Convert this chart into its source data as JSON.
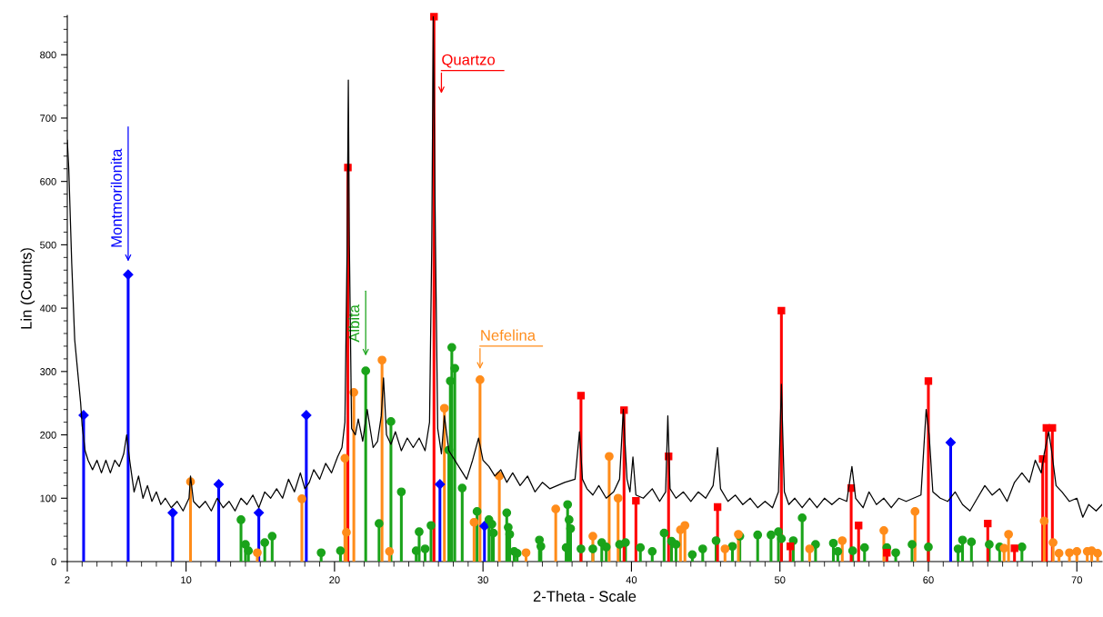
{
  "chart_data": {
    "type": "line",
    "xlabel": "2-Theta - Scale",
    "ylabel": "Lin (Counts)",
    "xlim": [
      2,
      71.7
    ],
    "ylim": [
      0,
      862
    ],
    "xticks": [
      2,
      10,
      20,
      30,
      40,
      50,
      60,
      70
    ],
    "yticks": [
      0,
      100,
      200,
      300,
      400,
      500,
      600,
      700,
      800
    ],
    "grid": false,
    "legend": false,
    "series": [
      {
        "color": "#000000",
        "marker": "none",
        "line_style": "solid",
        "x": [
          2.0,
          2.1,
          2.3,
          2.5,
          2.7,
          2.9,
          3.0,
          3.2,
          3.4,
          3.7,
          4.0,
          4.3,
          4.6,
          4.9,
          5.2,
          5.5,
          5.8,
          6.0,
          6.2,
          6.5,
          6.8,
          7.1,
          7.4,
          7.7,
          8.0,
          8.3,
          8.6,
          9.0,
          9.4,
          9.8,
          10.2,
          10.3,
          10.5,
          10.9,
          11.3,
          11.7,
          12.1,
          12.5,
          12.9,
          13.3,
          13.7,
          14.1,
          14.5,
          14.9,
          15.3,
          15.7,
          16.1,
          16.5,
          16.9,
          17.3,
          17.7,
          18.0,
          18.3,
          18.6,
          19.0,
          19.4,
          19.8,
          20.2,
          20.5,
          20.7,
          20.85,
          20.93,
          21.0,
          21.15,
          21.4,
          21.6,
          21.9,
          22.2,
          22.6,
          22.9,
          23.15,
          23.3,
          23.5,
          23.8,
          24.1,
          24.5,
          24.9,
          25.3,
          25.7,
          26.1,
          26.4,
          26.55,
          26.65,
          26.8,
          26.95,
          27.2,
          27.4,
          27.7,
          28.1,
          28.5,
          28.9,
          29.3,
          29.7,
          30.0,
          30.4,
          30.8,
          31.2,
          31.6,
          32.0,
          32.5,
          33.0,
          33.5,
          34.0,
          34.5,
          35.0,
          35.5,
          36.2,
          36.5,
          36.7,
          37.0,
          37.4,
          37.8,
          38.3,
          38.8,
          39.2,
          39.45,
          39.7,
          39.9,
          40.1,
          40.3,
          40.8,
          41.4,
          41.9,
          42.3,
          42.45,
          42.6,
          43.0,
          43.5,
          44.0,
          44.5,
          45.0,
          45.5,
          45.8,
          46.0,
          46.5,
          47.0,
          47.5,
          48.0,
          48.5,
          49.0,
          49.5,
          49.9,
          50.1,
          50.3,
          50.6,
          51.0,
          51.5,
          52.0,
          52.5,
          53.0,
          53.5,
          54.0,
          54.5,
          54.85,
          55.1,
          55.6,
          56.0,
          56.5,
          57.0,
          57.5,
          58.0,
          58.5,
          59.0,
          59.5,
          59.85,
          60.05,
          60.3,
          60.8,
          61.3,
          61.8,
          62.3,
          62.8,
          63.3,
          63.8,
          64.3,
          64.8,
          65.3,
          65.8,
          66.3,
          66.8,
          67.2,
          67.6,
          67.8,
          68.1,
          68.3,
          68.6,
          69.0,
          69.5,
          70.0,
          70.4,
          70.8,
          71.3,
          71.7
        ],
        "values": [
          665,
          620,
          470,
          350,
          300,
          250,
          215,
          175,
          160,
          145,
          160,
          140,
          160,
          140,
          160,
          150,
          170,
          200,
          160,
          110,
          135,
          100,
          120,
          95,
          110,
          90,
          100,
          85,
          95,
          80,
          100,
          135,
          95,
          85,
          95,
          80,
          100,
          85,
          95,
          80,
          100,
          90,
          105,
          85,
          110,
          100,
          115,
          100,
          130,
          110,
          140,
          115,
          125,
          145,
          130,
          155,
          140,
          165,
          180,
          220,
          500,
          760,
          500,
          210,
          200,
          225,
          190,
          240,
          180,
          190,
          230,
          290,
          200,
          185,
          205,
          175,
          195,
          180,
          195,
          175,
          220,
          500,
          860,
          500,
          210,
          170,
          230,
          175,
          160,
          145,
          130,
          160,
          195,
          160,
          150,
          135,
          145,
          125,
          140,
          120,
          135,
          110,
          125,
          115,
          120,
          125,
          130,
          205,
          130,
          115,
          105,
          120,
          100,
          110,
          130,
          240,
          130,
          110,
          165,
          105,
          100,
          115,
          95,
          110,
          230,
          115,
          100,
          110,
          95,
          110,
          100,
          120,
          180,
          115,
          95,
          105,
          90,
          100,
          85,
          95,
          85,
          110,
          280,
          110,
          90,
          100,
          85,
          100,
          85,
          100,
          90,
          100,
          95,
          150,
          100,
          85,
          110,
          90,
          100,
          85,
          100,
          95,
          100,
          105,
          240,
          200,
          110,
          100,
          95,
          110,
          90,
          80,
          100,
          120,
          105,
          115,
          95,
          125,
          140,
          125,
          160,
          140,
          170,
          205,
          175,
          120,
          110,
          95,
          100,
          70,
          90,
          80,
          90
        ]
      },
      {
        "type": "lollipop",
        "color": "#0000ff",
        "marker": "diamond",
        "x": [
          3.1,
          6.1,
          9.1,
          12.2,
          14.9,
          18.1,
          27.1,
          30.1,
          61.5
        ],
        "values": [
          231,
          453,
          77,
          122,
          77,
          231,
          122,
          56,
          188
        ]
      },
      {
        "type": "lollipop",
        "color": "#1aa31a",
        "marker": "circle",
        "x": [
          13.7,
          14.0,
          14.2,
          15.3,
          15.8,
          19.1,
          20.4,
          22.1,
          23.0,
          23.8,
          24.5,
          25.5,
          25.7,
          26.1,
          26.5,
          27.7,
          27.8,
          27.9,
          28.1,
          28.6,
          29.6,
          30.4,
          30.6,
          30.7,
          31.6,
          31.7,
          31.8,
          32.1,
          32.3,
          33.8,
          33.9,
          35.6,
          35.7,
          35.8,
          35.9,
          36.6,
          37.4,
          38.0,
          38.3,
          39.2,
          39.6,
          40.6,
          41.4,
          42.2,
          42.7,
          43.0,
          44.1,
          44.8,
          45.7,
          46.8,
          47.3,
          48.5,
          49.4,
          49.9,
          50.1,
          50.9,
          51.5,
          52.4,
          53.6,
          53.9,
          54.9,
          55.7,
          57.2,
          57.8,
          58.9,
          60.0,
          62.0,
          62.3,
          62.9,
          64.1,
          64.8,
          66.3
        ],
        "values": [
          66,
          27,
          17,
          30,
          40,
          14,
          17,
          301,
          60,
          221,
          110,
          17,
          47,
          20,
          57,
          176,
          285,
          338,
          305,
          116,
          79,
          66,
          59,
          45,
          77,
          54,
          43,
          16,
          13,
          34,
          24,
          22,
          90,
          66,
          52,
          20,
          20,
          30,
          23,
          27,
          30,
          22,
          16,
          45,
          32,
          27,
          11,
          20,
          33,
          24,
          40,
          42,
          42,
          47,
          36,
          33,
          69,
          27,
          29,
          16,
          17,
          22,
          22,
          14,
          27,
          23,
          20,
          34,
          31,
          27,
          23,
          23
        ]
      },
      {
        "type": "lollipop",
        "color": "#ff0000",
        "marker": "square",
        "x": [
          20.9,
          26.7,
          36.6,
          39.5,
          40.3,
          42.5,
          45.8,
          50.1,
          50.7,
          54.8,
          55.3,
          57.2,
          60.0,
          64.0,
          65.8,
          67.7,
          67.95,
          68.35
        ],
        "values": [
          622,
          860,
          262,
          239,
          96,
          166,
          86,
          396,
          24,
          116,
          57,
          14,
          285,
          60,
          21,
          162,
          211,
          211
        ]
      },
      {
        "type": "lollipop",
        "color": "#ff8c1a",
        "marker": "circle",
        "x": [
          10.3,
          14.8,
          17.8,
          20.7,
          20.8,
          21.3,
          23.2,
          23.7,
          27.4,
          29.4,
          29.8,
          31.1,
          32.9,
          34.9,
          37.4,
          38.5,
          39.1,
          43.3,
          43.6,
          46.3,
          47.2,
          52.0,
          54.2,
          57.0,
          59.1,
          65.1,
          65.4,
          67.8,
          68.4,
          68.8,
          69.5,
          70.0,
          70.7,
          71.0,
          71.4
        ],
        "values": [
          126,
          14,
          99,
          163,
          46,
          267,
          318,
          16,
          242,
          62,
          287,
          135,
          14,
          83,
          40,
          166,
          100,
          50,
          57,
          20,
          43,
          20,
          33,
          49,
          79,
          21,
          43,
          64,
          30,
          13,
          14,
          16,
          16,
          17,
          13
        ]
      }
    ],
    "annotations": [
      {
        "text": "Montmorilonita",
        "x": 6.1,
        "y": 453
      },
      {
        "text": "Albita",
        "x": 22.1,
        "y": 301
      },
      {
        "text": "Quartzo",
        "x": 26.7,
        "y": 860
      },
      {
        "text": "Nefelina",
        "x": 29.8,
        "y": 287
      }
    ]
  }
}
